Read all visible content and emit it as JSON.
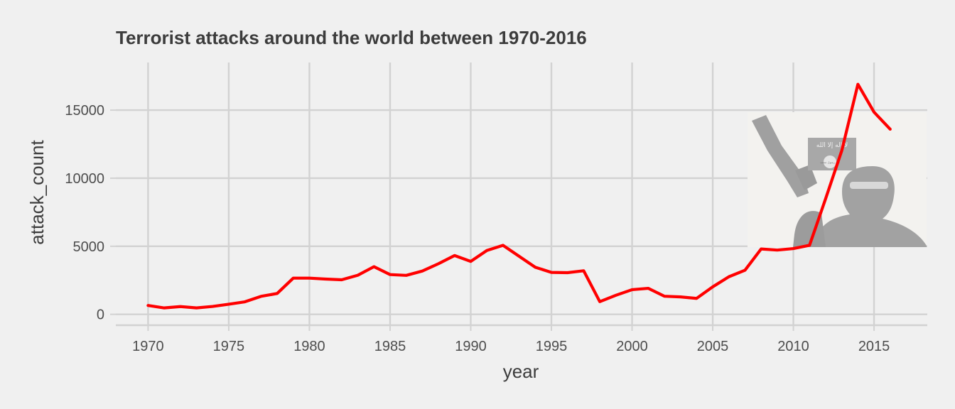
{
  "chart_data": {
    "type": "line",
    "title": "Terrorist attacks around the world between 1970-2016",
    "xlabel": "year",
    "ylabel": "attack_count",
    "xlim": [
      1968,
      2018.3
    ],
    "ylim": [
      -800,
      18500
    ],
    "x_ticks": [
      1970,
      1975,
      1980,
      1985,
      1990,
      1995,
      2000,
      2005,
      2010,
      2015
    ],
    "y_ticks": [
      0,
      5000,
      10000,
      15000
    ],
    "grid": true,
    "legend": "none",
    "line_color": "#ff0000",
    "series": [
      {
        "x": [
          1970,
          1971,
          1972,
          1973,
          1974,
          1975,
          1976,
          1977,
          1978,
          1979,
          1980,
          1981,
          1982,
          1983,
          1984,
          1985,
          1986,
          1987,
          1988,
          1989,
          1990,
          1991,
          1992,
          1994,
          1995,
          1996,
          1997,
          1998,
          1999,
          2000,
          2001,
          2002,
          2003,
          2004,
          2005,
          2006,
          2007,
          2008,
          2009,
          2010,
          2011,
          2012,
          2013,
          2014,
          2015,
          2016
        ],
        "values": [
          650,
          470,
          570,
          470,
          580,
          740,
          920,
          1320,
          1530,
          2660,
          2660,
          2590,
          2540,
          2870,
          3500,
          2920,
          2860,
          3180,
          3720,
          4320,
          3890,
          4690,
          5070,
          3460,
          3080,
          3060,
          3200,
          930,
          1400,
          1810,
          1910,
          1330,
          1280,
          1170,
          2020,
          2760,
          3240,
          4800,
          4720,
          4830,
          5070,
          8500,
          12030,
          16900,
          14850,
          13600
        ]
      }
    ],
    "inset_image": {
      "description_icon": "militant-with-rpg-and-black-flag-icon",
      "flag_text": "لا إله إلا الله",
      "seal_text": "الله رسول محمد"
    }
  }
}
